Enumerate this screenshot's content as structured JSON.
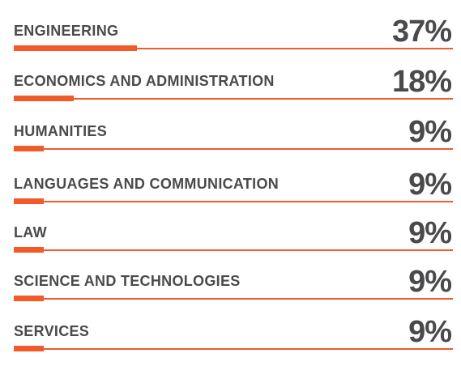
{
  "chart_data": {
    "type": "bar",
    "categories": [
      "ENGINEERING",
      "ECONOMICS AND ADMINISTRATION",
      "HUMANITIES",
      "LANGUAGES AND COMMUNICATION",
      "LAW",
      "SCIENCE AND TECHNOLOGIES",
      "SERVICES"
    ],
    "values": [
      37,
      18,
      9,
      9,
      9,
      9,
      9
    ],
    "value_labels": [
      "37%",
      "18%",
      "9%",
      "9%",
      "9%",
      "9%",
      "9%"
    ],
    "xlim": [
      0,
      100
    ],
    "accent_color": "#f25a29",
    "text_color": "#4a4a4c"
  }
}
